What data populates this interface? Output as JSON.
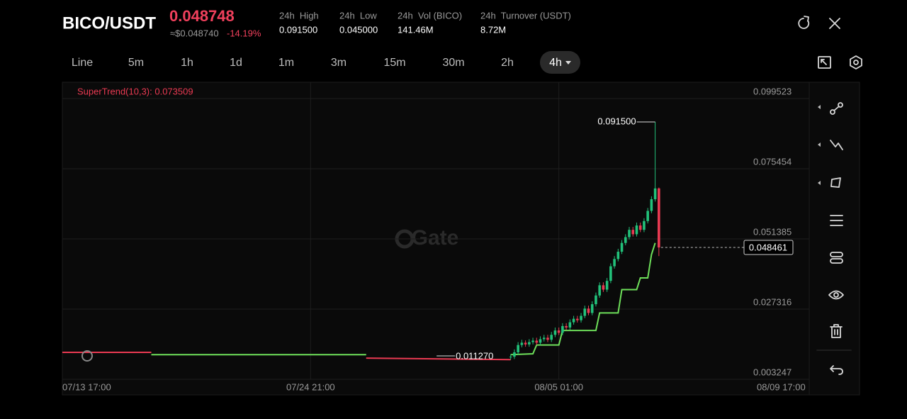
{
  "header": {
    "pair": "BICO/USDT",
    "price": "0.048748",
    "usd_price": "≈$0.048740",
    "change": "-14.19%",
    "stats": [
      {
        "label": "24h  High",
        "value": "0.091500"
      },
      {
        "label": "24h  Low",
        "value": "0.045000"
      },
      {
        "label": "24h  Vol (BICO)",
        "value": "141.46M"
      },
      {
        "label": "24h  Turnover (USDT)",
        "value": "8.72M"
      }
    ]
  },
  "intervals": [
    "Line",
    "5m",
    "1h",
    "1d",
    "1m",
    "3m",
    "15m",
    "30m",
    "2h",
    "4h"
  ],
  "active_interval": "4h",
  "watermark": "Gate",
  "chart_data": {
    "type": "candlestick",
    "indicator": "SuperTrend(10,3): 0.073509",
    "up_color": "#22c17a",
    "down_color": "#ea3a52",
    "x": [
      121,
      122,
      123,
      124,
      125,
      126,
      127,
      128,
      129,
      130,
      131,
      132,
      133,
      134,
      135,
      136,
      137,
      138,
      139,
      140,
      141,
      142,
      143,
      144,
      145,
      146,
      147,
      148,
      149,
      150,
      151,
      152,
      153,
      154,
      155,
      156,
      157,
      158,
      159,
      160,
      161
    ],
    "open": [
      0.0108,
      0.011,
      0.0125,
      0.015,
      0.0158,
      0.0152,
      0.016,
      0.0165,
      0.0158,
      0.017,
      0.0175,
      0.0168,
      0.0185,
      0.02,
      0.0192,
      0.0215,
      0.021,
      0.0228,
      0.024,
      0.0235,
      0.025,
      0.0275,
      0.026,
      0.029,
      0.032,
      0.0355,
      0.034,
      0.037,
      0.042,
      0.0445,
      0.047,
      0.05,
      0.052,
      0.0545,
      0.053,
      0.056,
      0.0545,
      0.0575,
      0.061,
      0.065,
      0.0687
    ],
    "high": [
      0.0118,
      0.0135,
      0.016,
      0.0168,
      0.0166,
      0.017,
      0.0175,
      0.0175,
      0.018,
      0.0185,
      0.0185,
      0.0195,
      0.021,
      0.021,
      0.0225,
      0.0225,
      0.0238,
      0.025,
      0.025,
      0.026,
      0.0285,
      0.0285,
      0.03,
      0.033,
      0.0365,
      0.0365,
      0.038,
      0.043,
      0.0455,
      0.048,
      0.051,
      0.053,
      0.0555,
      0.0555,
      0.057,
      0.057,
      0.0585,
      0.062,
      0.066,
      0.0915,
      0.069
    ],
    "low": [
      0.01,
      0.0102,
      0.0117,
      0.0142,
      0.0144,
      0.0144,
      0.0152,
      0.015,
      0.015,
      0.0162,
      0.016,
      0.016,
      0.0177,
      0.0184,
      0.0184,
      0.0202,
      0.0202,
      0.022,
      0.0227,
      0.0227,
      0.0242,
      0.0252,
      0.0252,
      0.0282,
      0.0312,
      0.0332,
      0.0332,
      0.0362,
      0.0412,
      0.0437,
      0.0462,
      0.0492,
      0.0512,
      0.0522,
      0.0522,
      0.0537,
      0.0537,
      0.0567,
      0.0602,
      0.0642,
      0.0455
    ],
    "close": [
      0.011,
      0.0125,
      0.015,
      0.0158,
      0.0152,
      0.016,
      0.0165,
      0.0158,
      0.017,
      0.0175,
      0.0168,
      0.0185,
      0.02,
      0.0192,
      0.0215,
      0.021,
      0.0228,
      0.024,
      0.0235,
      0.025,
      0.0275,
      0.026,
      0.029,
      0.032,
      0.0355,
      0.034,
      0.037,
      0.042,
      0.0445,
      0.047,
      0.05,
      0.052,
      0.0545,
      0.053,
      0.056,
      0.0545,
      0.0575,
      0.061,
      0.065,
      0.0687,
      0.048461
    ],
    "series": [
      {
        "color": "#ea3a52",
        "x": [
          0,
          24,
          50,
          82,
          121
        ],
        "values": [
          0.0125,
          0.0125,
          null,
          0.0105,
          0.01
        ]
      },
      {
        "color": "#6ee05a",
        "x": [
          24,
          82,
          83,
          121,
          127,
          128,
          134,
          135,
          144,
          145,
          150,
          151,
          155,
          156,
          158,
          159,
          160
        ],
        "values": [
          0.0117,
          0.0117,
          null,
          0.0117,
          0.012,
          0.015,
          0.015,
          0.02,
          0.02,
          0.026,
          0.026,
          0.034,
          0.034,
          0.038,
          0.038,
          0.046,
          0.05
        ]
      }
    ],
    "xlim": [
      0,
      201
    ],
    "xticks": [
      {
        "value": 0,
        "label": "07/13 17:00"
      },
      {
        "value": 67,
        "label": "07/24 21:00"
      },
      {
        "value": 134,
        "label": "08/05 01:00"
      },
      {
        "value": 194,
        "label": "08/09 17:00"
      }
    ],
    "ylim": [
      0.003247,
      0.099523
    ],
    "yticks": [
      0.099523,
      0.075454,
      0.051385,
      0.027316,
      0.003247
    ],
    "grid": true,
    "high_marker": {
      "x": 160,
      "value": 0.0915,
      "label": "0.091500"
    },
    "low_marker": {
      "x": 101,
      "value": 0.01127,
      "label": "0.011270"
    },
    "last_price": {
      "value": 0.048461,
      "label": "0.048461"
    }
  }
}
